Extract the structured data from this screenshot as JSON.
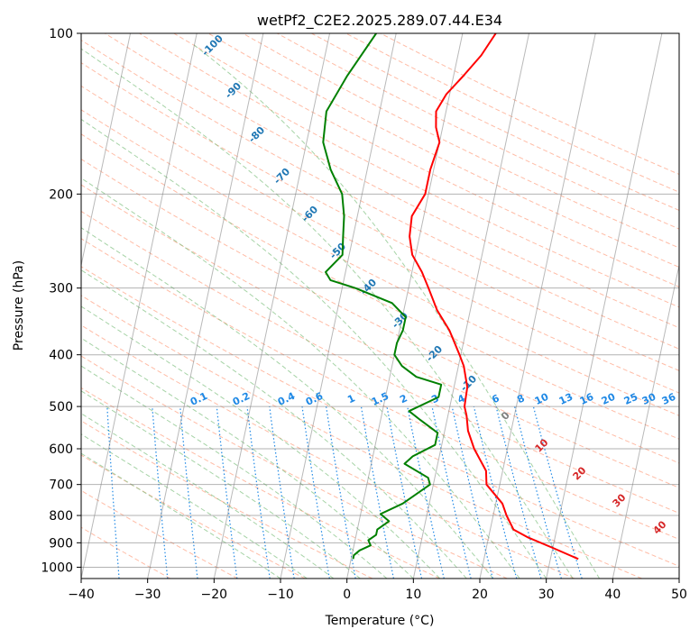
{
  "chart_data": {
    "type": "line",
    "title": "wetPf2_C2E2.2025.289.07.44.E34",
    "xlabel": "Temperature (°C)",
    "ylabel": "Pressure (hPa)",
    "xlim": [
      -40,
      50
    ],
    "ylim": [
      1050,
      100
    ],
    "x_ticks": [
      -40,
      -30,
      -20,
      -10,
      0,
      10,
      20,
      30,
      40,
      50
    ],
    "y_ticks": [
      100,
      200,
      300,
      400,
      500,
      600,
      700,
      800,
      900,
      1000
    ],
    "colors": {
      "temperature": "#ff0000",
      "dewpoint": "#008000",
      "dry_adiabat": "#ff9f80",
      "moist_adiabat": "#80c080",
      "mixing_ratio": "#1e88e5",
      "isotherm": "#808080",
      "dry_label": "#d62728",
      "moist_label": "#1f77b4",
      "zero_label": "#808080"
    },
    "series": [
      {
        "name": "Temperature",
        "points": [
          [
            34.2,
            965
          ],
          [
            30.0,
            920
          ],
          [
            26.0,
            880
          ],
          [
            23.5,
            850
          ],
          [
            22.0,
            800
          ],
          [
            21.0,
            760
          ],
          [
            18.0,
            700
          ],
          [
            17.5,
            660
          ],
          [
            15.0,
            600
          ],
          [
            13.5,
            555
          ],
          [
            12.8,
            520
          ],
          [
            12.2,
            500
          ],
          [
            12.0,
            460
          ],
          [
            10.8,
            420
          ],
          [
            9.8,
            400
          ],
          [
            7.5,
            360
          ],
          [
            5.0,
            330
          ],
          [
            3.0,
            300
          ],
          [
            1.5,
            280
          ],
          [
            -0.5,
            260
          ],
          [
            -1.5,
            240
          ],
          [
            -1.8,
            220
          ],
          [
            -0.5,
            200
          ],
          [
            -0.5,
            180
          ],
          [
            0.0,
            160
          ],
          [
            -1.0,
            150
          ],
          [
            -1.5,
            140
          ],
          [
            -0.5,
            130
          ],
          [
            1.5,
            120
          ],
          [
            3.5,
            110
          ],
          [
            5.0,
            100
          ]
        ]
      },
      {
        "name": "Dewpoint",
        "points": [
          [
            0.3,
            965
          ],
          [
            0.3,
            950
          ],
          [
            1.0,
            930
          ],
          [
            2.5,
            910
          ],
          [
            2.0,
            890
          ],
          [
            3.0,
            870
          ],
          [
            3.0,
            850
          ],
          [
            4.5,
            820
          ],
          [
            3.0,
            795
          ],
          [
            6.0,
            760
          ],
          [
            9.5,
            700
          ],
          [
            9.0,
            680
          ],
          [
            5.0,
            640
          ],
          [
            6.0,
            620
          ],
          [
            9.0,
            590
          ],
          [
            9.0,
            560
          ],
          [
            6.0,
            530
          ],
          [
            4.0,
            510
          ],
          [
            8.0,
            480
          ],
          [
            8.0,
            455
          ],
          [
            4.0,
            440
          ],
          [
            1.5,
            420
          ],
          [
            0.0,
            400
          ],
          [
            0.0,
            380
          ],
          [
            0.5,
            360
          ],
          [
            0.5,
            340
          ],
          [
            -2.0,
            320
          ],
          [
            -8.0,
            300
          ],
          [
            -12.0,
            290
          ],
          [
            -13.0,
            280
          ],
          [
            -11.0,
            260
          ],
          [
            -11.5,
            240
          ],
          [
            -12.0,
            220
          ],
          [
            -13.0,
            200
          ],
          [
            -15.5,
            180
          ],
          [
            -17.5,
            160
          ],
          [
            -18.0,
            140
          ],
          [
            -16.0,
            120
          ],
          [
            -13.0,
            100
          ]
        ]
      }
    ],
    "background_labels": {
      "dry_adiabat": [
        "-100",
        "-90",
        "-80",
        "-70",
        "-60",
        "-50",
        "-40",
        "-30",
        "-20",
        "-10"
      ],
      "moist_adiabat": [
        "0",
        "10",
        "20",
        "30",
        "40"
      ],
      "mixing_ratio": [
        "0.1",
        "0.2",
        "0.4",
        "0.6",
        "1",
        "1.5",
        "2",
        "3",
        "4",
        "6",
        "8",
        "10",
        "13",
        "16",
        "20",
        "25",
        "30",
        "36"
      ]
    }
  }
}
